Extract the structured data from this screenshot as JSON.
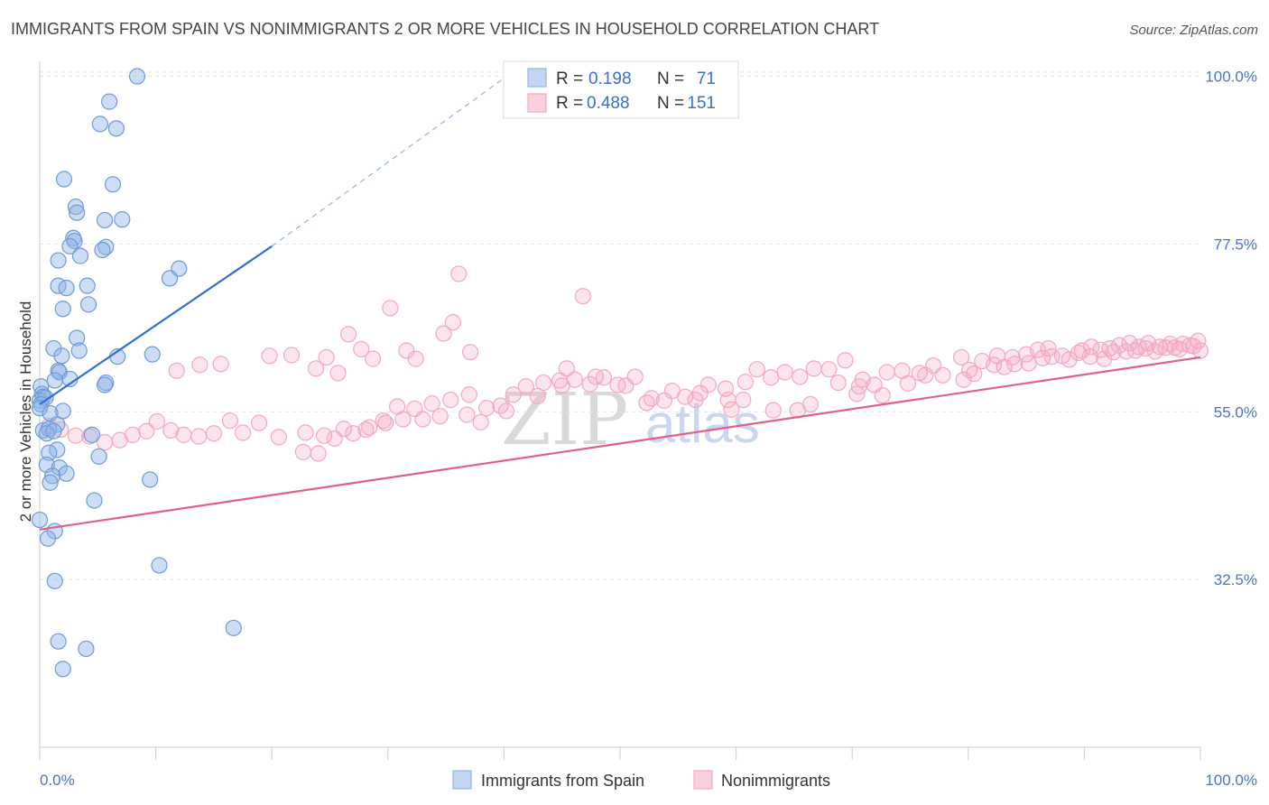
{
  "header": {
    "title": "IMMIGRANTS FROM SPAIN VS NONIMMIGRANTS 2 OR MORE VEHICLES IN HOUSEHOLD CORRELATION CHART",
    "source": "Source: ZipAtlas.com"
  },
  "watermark": {
    "zip": "ZIP",
    "atlas": "atlas"
  },
  "legend": {
    "r_label": "R =",
    "n_label": "N =",
    "rows": [
      {
        "r": "0.198",
        "n": "71"
      },
      {
        "r": "0.488",
        "n": "151"
      }
    ]
  },
  "chart_data": {
    "type": "scatter",
    "title": "IMMIGRANTS FROM SPAIN VS NONIMMIGRANTS 2 OR MORE VEHICLES IN HOUSEHOLD CORRELATION CHART",
    "xlabel": "",
    "ylabel": "2 or more Vehicles in Household",
    "xlim": [
      0,
      100
    ],
    "ylim": [
      10,
      102
    ],
    "x_tick_labels": [
      "0.0%",
      "100.0%"
    ],
    "y_ticks": [
      {
        "value": 100,
        "label": "100.0%"
      },
      {
        "value": 77.5,
        "label": "77.5%"
      },
      {
        "value": 55,
        "label": "55.0%"
      },
      {
        "value": 32.5,
        "label": "32.5%"
      }
    ],
    "grid": true,
    "legend_position": "top-center",
    "series": [
      {
        "name": "Immigrants from Spain",
        "color": "#8fb4e8",
        "line_color": "#2f6fd0",
        "r": 0.198,
        "n": 71,
        "trend": {
          "x0": 0,
          "y0": 56,
          "x1": 20,
          "y1": 77.2,
          "dash_to_x": 42,
          "dash_to_y": 102
        },
        "points": [
          [
            8.4,
            100
          ],
          [
            6.0,
            96.6
          ],
          [
            5.2,
            93.6
          ],
          [
            6.6,
            93.0
          ],
          [
            2.1,
            86.2
          ],
          [
            6.3,
            85.5
          ],
          [
            3.1,
            82.5
          ],
          [
            3.2,
            81.7
          ],
          [
            5.6,
            80.7
          ],
          [
            7.1,
            80.8
          ],
          [
            2.9,
            78.3
          ],
          [
            3.0,
            77.9
          ],
          [
            5.7,
            77.1
          ],
          [
            2.6,
            77.2
          ],
          [
            5.4,
            76.7
          ],
          [
            1.6,
            75.3
          ],
          [
            3.5,
            75.9
          ],
          [
            12.0,
            74.2
          ],
          [
            11.2,
            72.9
          ],
          [
            1.6,
            71.9
          ],
          [
            2.3,
            71.6
          ],
          [
            4.1,
            71.9
          ],
          [
            4.2,
            69.4
          ],
          [
            2.0,
            68.8
          ],
          [
            3.2,
            64.9
          ],
          [
            1.2,
            63.5
          ],
          [
            3.4,
            63.2
          ],
          [
            1.9,
            62.5
          ],
          [
            6.7,
            62.4
          ],
          [
            9.7,
            62.7
          ],
          [
            1.6,
            60.5
          ],
          [
            1.7,
            60.3
          ],
          [
            1.3,
            59.2
          ],
          [
            2.6,
            59.4
          ],
          [
            5.7,
            58.9
          ],
          [
            5.6,
            58.6
          ],
          [
            0.1,
            58.4
          ],
          [
            0.2,
            57.4
          ],
          [
            0.3,
            57.0
          ],
          [
            0.0,
            56.5
          ],
          [
            0.5,
            56.9
          ],
          [
            0.1,
            56.0
          ],
          [
            0.0,
            55.5
          ],
          [
            2.0,
            55.1
          ],
          [
            0.9,
            54.8
          ],
          [
            1.5,
            53.3
          ],
          [
            0.3,
            52.5
          ],
          [
            0.8,
            52.7
          ],
          [
            0.6,
            52.1
          ],
          [
            1.2,
            52.4
          ],
          [
            4.5,
            51.9
          ],
          [
            1.5,
            49.9
          ],
          [
            0.8,
            49.5
          ],
          [
            5.1,
            49.0
          ],
          [
            0.6,
            47.9
          ],
          [
            1.7,
            47.5
          ],
          [
            2.3,
            46.7
          ],
          [
            1.1,
            46.4
          ],
          [
            0.9,
            45.5
          ],
          [
            9.5,
            45.9
          ],
          [
            4.7,
            43.1
          ],
          [
            0.0,
            40.5
          ],
          [
            1.3,
            39.0
          ],
          [
            0.7,
            38.0
          ],
          [
            10.3,
            34.4
          ],
          [
            1.3,
            32.3
          ],
          [
            16.7,
            26.0
          ],
          [
            1.6,
            24.2
          ],
          [
            4.0,
            23.2
          ],
          [
            2.0,
            20.5
          ]
        ]
      },
      {
        "name": "Nonimmigrants",
        "color": "#f4a8c0",
        "line_color": "#e0608a",
        "r": 0.488,
        "n": 151,
        "trend": {
          "x0": 0,
          "y0": 39.2,
          "x1": 100,
          "y1": 62.3
        },
        "points": [
          [
            36.1,
            73.5
          ],
          [
            46.8,
            70.5
          ],
          [
            30.2,
            68.9
          ],
          [
            35.6,
            67.0
          ],
          [
            26.6,
            65.4
          ],
          [
            34.8,
            65.5
          ],
          [
            27.7,
            63.4
          ],
          [
            31.6,
            63.2
          ],
          [
            37.1,
            63.0
          ],
          [
            21.7,
            62.6
          ],
          [
            24.7,
            62.3
          ],
          [
            19.8,
            62.5
          ],
          [
            28.7,
            62.1
          ],
          [
            32.4,
            62.1
          ],
          [
            15.6,
            61.4
          ],
          [
            13.8,
            61.3
          ],
          [
            11.8,
            60.5
          ],
          [
            25.7,
            60.2
          ],
          [
            23.8,
            60.8
          ],
          [
            45.4,
            60.8
          ],
          [
            51.3,
            59.7
          ],
          [
            47.9,
            59.7
          ],
          [
            52.7,
            56.8
          ],
          [
            56.5,
            56.6
          ],
          [
            60.6,
            56.6
          ],
          [
            59.3,
            56.6
          ],
          [
            59.6,
            55.3
          ],
          [
            63.2,
            55.2
          ],
          [
            65.3,
            55.2
          ],
          [
            66.4,
            56.0
          ],
          [
            70.4,
            57.4
          ],
          [
            72.6,
            57.2
          ],
          [
            68.8,
            58.9
          ],
          [
            70.9,
            59.3
          ],
          [
            74.8,
            58.8
          ],
          [
            76.3,
            59.9
          ],
          [
            77.8,
            59.9
          ],
          [
            79.6,
            59.3
          ],
          [
            80.5,
            60.1
          ],
          [
            82.2,
            61.3
          ],
          [
            83.1,
            61.0
          ],
          [
            84.0,
            61.4
          ],
          [
            85.2,
            61.5
          ],
          [
            86.4,
            62.2
          ],
          [
            87.2,
            62.4
          ],
          [
            88.7,
            62.0
          ],
          [
            89.8,
            63.2
          ],
          [
            90.5,
            62.4
          ],
          [
            91.7,
            62.1
          ],
          [
            92.5,
            63.0
          ],
          [
            93.6,
            63.1
          ],
          [
            94.4,
            63.2
          ],
          [
            95.3,
            63.5
          ],
          [
            96.1,
            63.1
          ],
          [
            97.0,
            63.6
          ],
          [
            97.8,
            63.6
          ],
          [
            98.5,
            64.1
          ],
          [
            99.1,
            63.9
          ],
          [
            99.8,
            64.5
          ],
          [
            100.0,
            63.2
          ],
          [
            99.4,
            63.8
          ],
          [
            98.2,
            63.4
          ],
          [
            97.4,
            64.1
          ],
          [
            96.5,
            63.7
          ],
          [
            95.5,
            64.2
          ],
          [
            94.7,
            63.7
          ],
          [
            93.9,
            64.2
          ],
          [
            93.0,
            63.9
          ],
          [
            92.2,
            63.5
          ],
          [
            91.4,
            63.3
          ],
          [
            90.6,
            63.7
          ],
          [
            89.5,
            62.9
          ],
          [
            88.1,
            62.5
          ],
          [
            86.9,
            63.5
          ],
          [
            86.0,
            63.3
          ],
          [
            85.0,
            62.7
          ],
          [
            83.8,
            62.3
          ],
          [
            82.5,
            62.5
          ],
          [
            81.2,
            61.8
          ],
          [
            80.1,
            60.6
          ],
          [
            79.4,
            62.3
          ],
          [
            77.0,
            61.2
          ],
          [
            75.8,
            60.2
          ],
          [
            74.3,
            60.5
          ],
          [
            73.0,
            60.3
          ],
          [
            71.9,
            58.6
          ],
          [
            70.6,
            58.4
          ],
          [
            69.4,
            61.9
          ],
          [
            68.0,
            60.7
          ],
          [
            66.7,
            60.8
          ],
          [
            65.5,
            59.7
          ],
          [
            64.2,
            60.3
          ],
          [
            63.0,
            59.6
          ],
          [
            61.8,
            60.7
          ],
          [
            60.8,
            59.0
          ],
          [
            59.1,
            58.1
          ],
          [
            57.6,
            58.6
          ],
          [
            56.9,
            57.5
          ],
          [
            55.6,
            57.0
          ],
          [
            54.5,
            57.8
          ],
          [
            53.8,
            56.5
          ],
          [
            52.3,
            56.2
          ],
          [
            50.5,
            58.5
          ],
          [
            49.8,
            58.6
          ],
          [
            48.6,
            59.6
          ],
          [
            47.4,
            58.7
          ],
          [
            46.1,
            59.3
          ],
          [
            44.8,
            59.2
          ],
          [
            43.4,
            58.9
          ],
          [
            41.9,
            58.4
          ],
          [
            40.8,
            57.3
          ],
          [
            39.7,
            55.8
          ],
          [
            38.5,
            55.5
          ],
          [
            37.0,
            57.3
          ],
          [
            35.4,
            56.6
          ],
          [
            33.8,
            56.1
          ],
          [
            32.3,
            55.4
          ],
          [
            30.8,
            55.7
          ],
          [
            29.6,
            53.8
          ],
          [
            28.1,
            52.6
          ],
          [
            26.2,
            52.7
          ],
          [
            24.5,
            51.8
          ],
          [
            22.9,
            52.2
          ],
          [
            20.6,
            51.6
          ],
          [
            18.9,
            53.5
          ],
          [
            17.5,
            52.2
          ],
          [
            16.4,
            53.8
          ],
          [
            15.0,
            52.1
          ],
          [
            13.7,
            51.7
          ],
          [
            12.4,
            51.9
          ],
          [
            11.3,
            52.5
          ],
          [
            10.1,
            53.7
          ],
          [
            9.2,
            52.4
          ],
          [
            8.0,
            51.9
          ],
          [
            6.9,
            51.2
          ],
          [
            5.6,
            50.9
          ],
          [
            4.3,
            51.7
          ],
          [
            3.1,
            51.8
          ],
          [
            1.8,
            52.6
          ],
          [
            0.8,
            53.1
          ],
          [
            45.0,
            58.5
          ],
          [
            42.9,
            57.1
          ],
          [
            40.2,
            55.1
          ],
          [
            38.0,
            53.6
          ],
          [
            36.8,
            54.6
          ],
          [
            34.5,
            54.4
          ],
          [
            33.0,
            54.0
          ],
          [
            31.3,
            54.0
          ],
          [
            29.8,
            53.5
          ],
          [
            28.4,
            52.9
          ],
          [
            27.0,
            52.1
          ],
          [
            25.4,
            51.4
          ],
          [
            24.0,
            49.4
          ],
          [
            22.7,
            49.6
          ]
        ]
      }
    ]
  },
  "bottom_legend": [
    {
      "label": "Immigrants from Spain"
    },
    {
      "label": "Nonimmigrants"
    }
  ],
  "x_axis": {
    "left_label": "0.0%",
    "right_label": "100.0%"
  }
}
